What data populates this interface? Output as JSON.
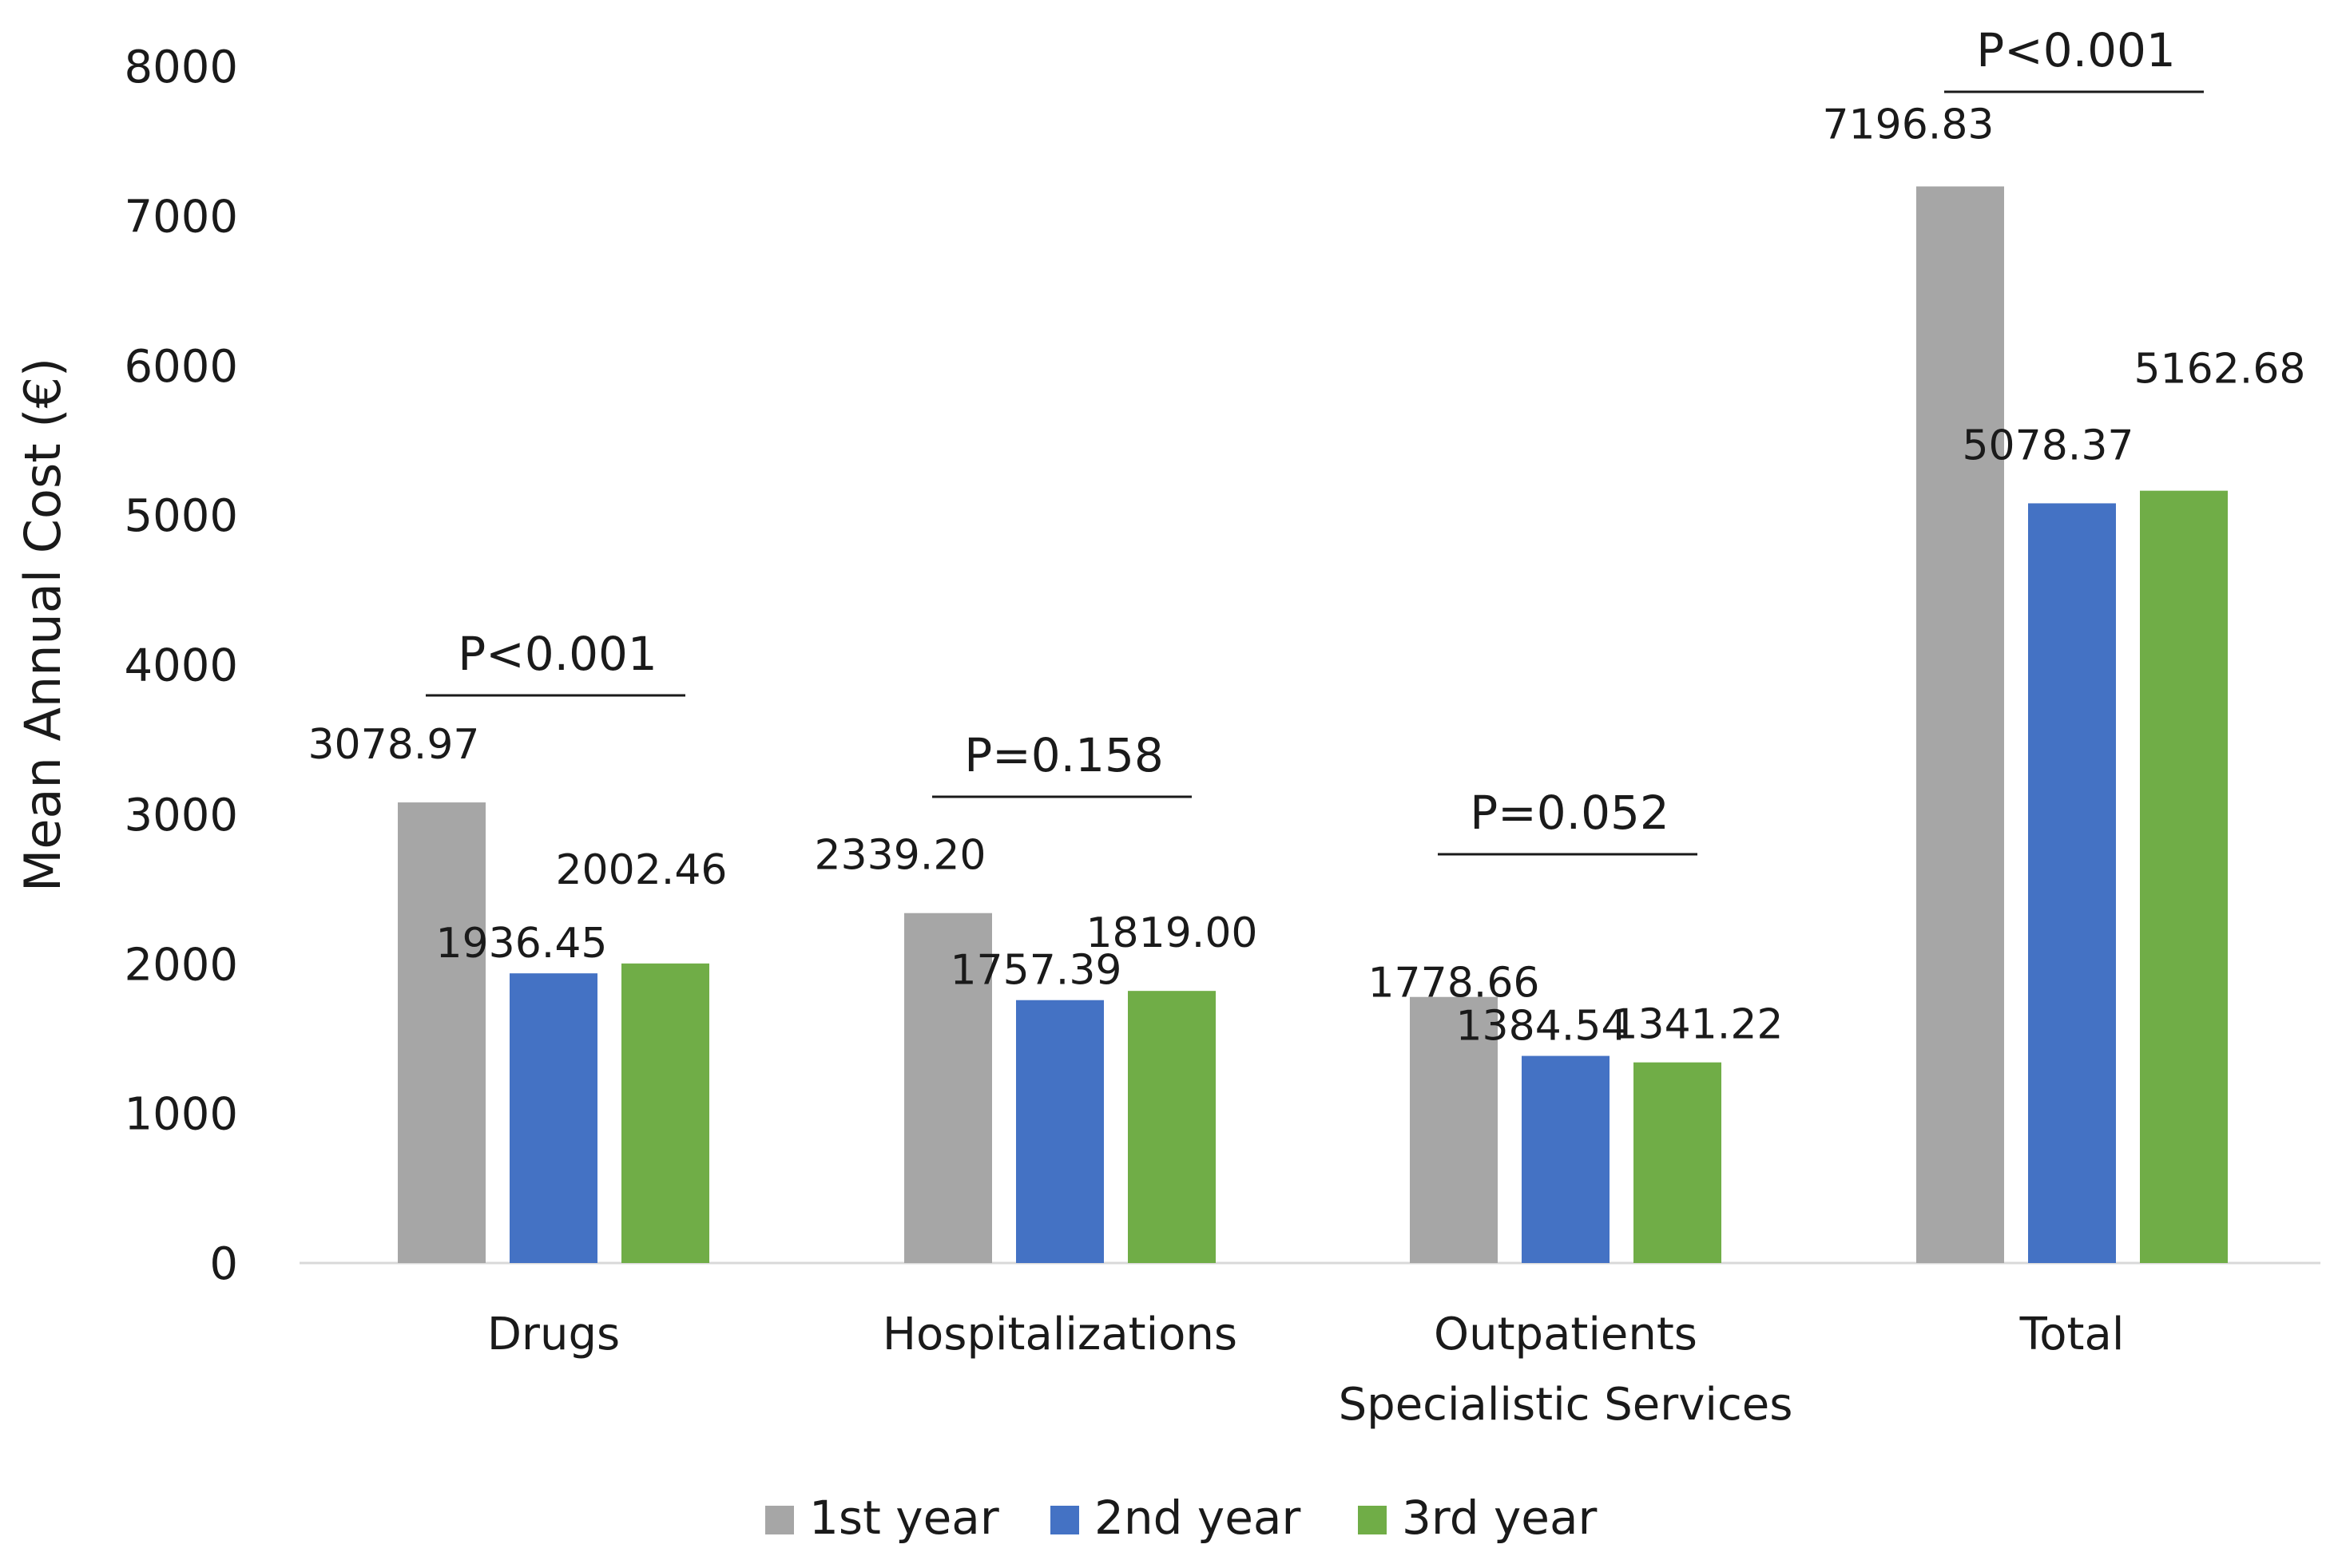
{
  "chart_data": {
    "type": "bar",
    "title": "",
    "xlabel": "",
    "ylabel": "Mean Annual Cost (€)",
    "ylim": [
      0,
      8000
    ],
    "yticks": [
      0,
      1000,
      2000,
      3000,
      4000,
      5000,
      6000,
      7000,
      8000
    ],
    "grid": false,
    "legend_position": "bottom",
    "categories": [
      [
        "Drugs"
      ],
      [
        "Hospitalizations"
      ],
      [
        "Outpatients",
        "Specialistic Services"
      ],
      [
        "Total"
      ]
    ],
    "series": [
      {
        "name": "1st year",
        "color": "#a6a6a6",
        "values": [
          3078.97,
          2339.2,
          1778.66,
          7196.83
        ],
        "labels": [
          "3078.97",
          "2339.20",
          "1778.66",
          "7196.83"
        ]
      },
      {
        "name": "2nd year",
        "color": "#4472c4",
        "values": [
          1936.45,
          1757.39,
          1384.54,
          5078.37
        ],
        "labels": [
          "1936.45",
          "1757.39",
          "1384.54",
          "5078.37"
        ]
      },
      {
        "name": "3rd year",
        "color": "#70ad47",
        "values": [
          2002.46,
          1819.0,
          1341.22,
          5162.68
        ],
        "labels": [
          "2002.46",
          "1819.00",
          "1341.22",
          "5162.68"
        ]
      }
    ],
    "p_values": [
      "P<0.001",
      "P=0.158",
      "P=0.052",
      "P<0.001"
    ],
    "axis_color": "#d9d9d9"
  }
}
